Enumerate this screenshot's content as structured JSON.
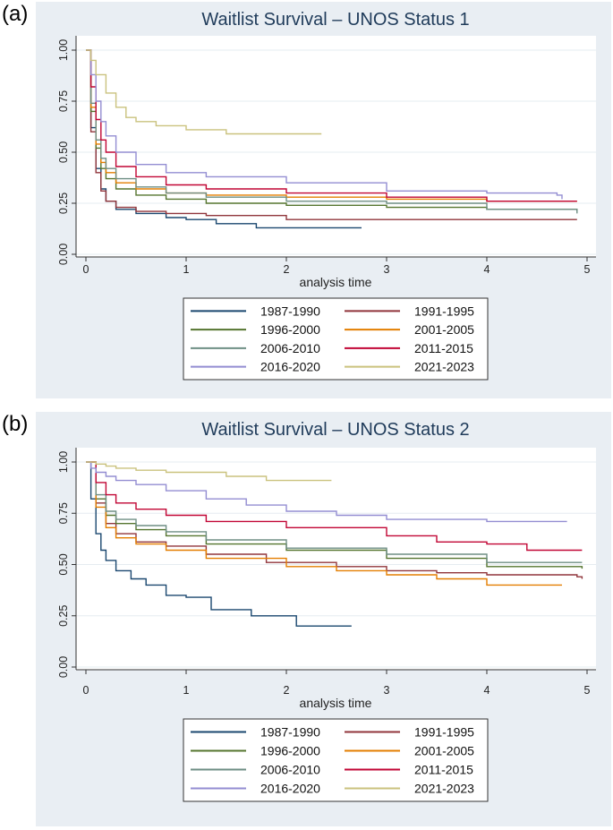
{
  "panels": [
    {
      "label": "(a)"
    },
    {
      "label": "(b)"
    }
  ],
  "chart_data": [
    {
      "type": "line",
      "title": "Waitlist Survival – UNOS Status 1",
      "xlabel": "analysis time",
      "ylabel": "",
      "xlim": [
        0,
        5
      ],
      "ylim": [
        0,
        1
      ],
      "x_ticks": [
        0,
        1,
        2,
        3,
        4,
        5
      ],
      "y_ticks": [
        "0.00",
        "0.25",
        "0.50",
        "0.75",
        "1.00"
      ],
      "grid": true,
      "legend_position": "bottom",
      "series": [
        {
          "name": "1987-1990",
          "color": "#1a476f",
          "x": [
            0,
            0.05,
            0.1,
            0.15,
            0.2,
            0.3,
            0.5,
            0.8,
            1.0,
            1.3,
            1.7,
            2.0,
            2.75
          ],
          "y": [
            1.0,
            0.62,
            0.42,
            0.32,
            0.26,
            0.22,
            0.2,
            0.18,
            0.17,
            0.15,
            0.13,
            0.13,
            0.13
          ]
        },
        {
          "name": "1991-1995",
          "color": "#90353b",
          "x": [
            0,
            0.05,
            0.1,
            0.15,
            0.2,
            0.3,
            0.5,
            0.8,
            1.2,
            2.0,
            3.0,
            4.0,
            4.9
          ],
          "y": [
            1.0,
            0.6,
            0.4,
            0.31,
            0.26,
            0.23,
            0.21,
            0.2,
            0.19,
            0.17,
            0.17,
            0.17,
            0.17
          ]
        },
        {
          "name": "1996-2000",
          "color": "#55752f",
          "x": [
            0,
            0.05,
            0.1,
            0.15,
            0.2,
            0.3,
            0.5,
            0.8,
            1.2,
            2.0,
            3.0,
            4.0,
            4.9
          ],
          "y": [
            1.0,
            0.7,
            0.52,
            0.42,
            0.37,
            0.32,
            0.29,
            0.27,
            0.25,
            0.24,
            0.23,
            0.22,
            0.21
          ]
        },
        {
          "name": "2001-2005",
          "color": "#e37e00",
          "x": [
            0,
            0.05,
            0.1,
            0.15,
            0.2,
            0.3,
            0.5,
            0.8,
            1.2,
            2.0,
            3.0,
            4.0,
            4.9
          ],
          "y": [
            1.0,
            0.72,
            0.54,
            0.45,
            0.4,
            0.35,
            0.32,
            0.3,
            0.29,
            0.28,
            0.27,
            0.26,
            0.26
          ]
        },
        {
          "name": "2006-2010",
          "color": "#6e8e84",
          "x": [
            0,
            0.05,
            0.1,
            0.15,
            0.2,
            0.3,
            0.5,
            0.8,
            1.2,
            2.0,
            3.0,
            4.0,
            4.9
          ],
          "y": [
            1.0,
            0.74,
            0.56,
            0.47,
            0.42,
            0.37,
            0.33,
            0.3,
            0.28,
            0.26,
            0.25,
            0.22,
            0.2
          ]
        },
        {
          "name": "2011-2015",
          "color": "#c10534",
          "x": [
            0,
            0.05,
            0.1,
            0.15,
            0.2,
            0.3,
            0.5,
            0.8,
            1.2,
            2.0,
            3.0,
            4.0,
            4.9
          ],
          "y": [
            1.0,
            0.82,
            0.66,
            0.56,
            0.5,
            0.43,
            0.38,
            0.34,
            0.32,
            0.3,
            0.28,
            0.26,
            0.26
          ]
        },
        {
          "name": "2016-2020",
          "color": "#938dd2",
          "x": [
            0,
            0.05,
            0.1,
            0.15,
            0.2,
            0.3,
            0.5,
            0.8,
            1.2,
            2.0,
            3.0,
            4.0,
            4.7,
            4.75
          ],
          "y": [
            1.0,
            0.88,
            0.75,
            0.65,
            0.58,
            0.5,
            0.44,
            0.4,
            0.38,
            0.35,
            0.31,
            0.3,
            0.29,
            0.27
          ]
        },
        {
          "name": "2021-2023",
          "color": "#cac27e",
          "x": [
            0,
            0.05,
            0.1,
            0.2,
            0.3,
            0.4,
            0.5,
            0.7,
            1.0,
            1.4,
            2.0,
            2.35
          ],
          "y": [
            1.0,
            0.95,
            0.88,
            0.79,
            0.72,
            0.67,
            0.65,
            0.63,
            0.61,
            0.59,
            0.59,
            0.59
          ]
        }
      ]
    },
    {
      "type": "line",
      "title": "Waitlist Survival – UNOS Status 2",
      "xlabel": "analysis time",
      "ylabel": "",
      "xlim": [
        0,
        5
      ],
      "ylim": [
        0,
        1
      ],
      "x_ticks": [
        0,
        1,
        2,
        3,
        4,
        5
      ],
      "y_ticks": [
        "0.00",
        "0.25",
        "0.50",
        "0.75",
        "1.00"
      ],
      "grid": true,
      "legend_position": "bottom",
      "series": [
        {
          "name": "1987-1990",
          "color": "#1a476f",
          "x": [
            0,
            0.05,
            0.1,
            0.15,
            0.2,
            0.3,
            0.45,
            0.6,
            0.8,
            1.0,
            1.25,
            1.65,
            2.1,
            2.65
          ],
          "y": [
            1.0,
            0.82,
            0.65,
            0.57,
            0.52,
            0.47,
            0.43,
            0.4,
            0.35,
            0.34,
            0.28,
            0.25,
            0.2,
            0.2
          ]
        },
        {
          "name": "1991-1995",
          "color": "#90353b",
          "x": [
            0,
            0.1,
            0.2,
            0.3,
            0.5,
            0.8,
            1.2,
            1.8,
            2.5,
            3.0,
            3.5,
            4.0,
            4.9,
            4.95
          ],
          "y": [
            1.0,
            0.8,
            0.7,
            0.65,
            0.61,
            0.59,
            0.55,
            0.51,
            0.49,
            0.47,
            0.46,
            0.45,
            0.44,
            0.43
          ]
        },
        {
          "name": "1996-2000",
          "color": "#55752f",
          "x": [
            0,
            0.1,
            0.2,
            0.3,
            0.5,
            0.8,
            1.2,
            2.0,
            3.0,
            4.0,
            4.95
          ],
          "y": [
            1.0,
            0.82,
            0.74,
            0.7,
            0.67,
            0.64,
            0.6,
            0.57,
            0.53,
            0.49,
            0.48
          ]
        },
        {
          "name": "2001-2005",
          "color": "#e37e00",
          "x": [
            0,
            0.1,
            0.2,
            0.3,
            0.5,
            0.8,
            1.2,
            2.0,
            2.5,
            3.0,
            3.5,
            4.0,
            4.75
          ],
          "y": [
            1.0,
            0.78,
            0.68,
            0.63,
            0.6,
            0.57,
            0.53,
            0.49,
            0.47,
            0.45,
            0.43,
            0.4,
            0.4
          ]
        },
        {
          "name": "2006-2010",
          "color": "#6e8e84",
          "x": [
            0,
            0.1,
            0.2,
            0.3,
            0.5,
            0.8,
            1.2,
            2.0,
            3.0,
            4.0,
            4.95
          ],
          "y": [
            1.0,
            0.84,
            0.76,
            0.72,
            0.69,
            0.66,
            0.62,
            0.58,
            0.55,
            0.51,
            0.51
          ]
        },
        {
          "name": "2011-2015",
          "color": "#c10534",
          "x": [
            0,
            0.1,
            0.2,
            0.3,
            0.5,
            0.8,
            1.2,
            2.0,
            3.0,
            3.5,
            4.0,
            4.4,
            4.95
          ],
          "y": [
            1.0,
            0.9,
            0.84,
            0.8,
            0.77,
            0.74,
            0.71,
            0.68,
            0.64,
            0.61,
            0.6,
            0.57,
            0.57
          ]
        },
        {
          "name": "2016-2020",
          "color": "#938dd2",
          "x": [
            0,
            0.05,
            0.1,
            0.2,
            0.3,
            0.5,
            0.8,
            1.2,
            1.6,
            2.0,
            2.5,
            3.0,
            4.0,
            4.8
          ],
          "y": [
            1.0,
            0.97,
            0.95,
            0.93,
            0.91,
            0.89,
            0.86,
            0.82,
            0.79,
            0.76,
            0.74,
            0.72,
            0.71,
            0.71
          ]
        },
        {
          "name": "2021-2023",
          "color": "#cac27e",
          "x": [
            0,
            0.1,
            0.2,
            0.3,
            0.5,
            0.8,
            1.0,
            1.4,
            1.8,
            2.0,
            2.45
          ],
          "y": [
            1.0,
            0.99,
            0.98,
            0.97,
            0.96,
            0.95,
            0.95,
            0.93,
            0.91,
            0.91,
            0.91
          ]
        }
      ]
    }
  ]
}
